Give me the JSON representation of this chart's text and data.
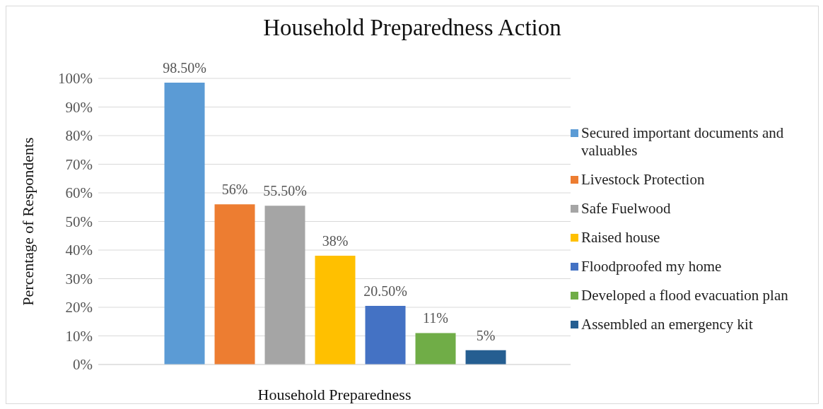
{
  "chart_data": {
    "type": "bar",
    "title": "Household Preparedness Action",
    "xlabel": "Household Preparedness",
    "ylabel": "Percentage of Respondents",
    "categories": [
      null
    ],
    "series": [
      {
        "name": "Secured important documents and valuables",
        "color": "#5b9bd5",
        "values": [
          98.5
        ],
        "value_labels": [
          "98.50%"
        ]
      },
      {
        "name": "Livestock Protection",
        "color": "#ed7d31",
        "values": [
          56
        ],
        "value_labels": [
          "56%"
        ]
      },
      {
        "name": "Safe Fuelwood",
        "color": "#a5a5a5",
        "values": [
          55.5
        ],
        "value_labels": [
          "55.50%"
        ]
      },
      {
        "name": "Raised house",
        "color": "#ffc000",
        "values": [
          38
        ],
        "value_labels": [
          "38%"
        ]
      },
      {
        "name": "Floodproofed my home",
        "color": "#4472c4",
        "values": [
          20.5
        ],
        "value_labels": [
          "20.50%"
        ]
      },
      {
        "name": "Developed a flood evacuation plan",
        "color": "#70ad47",
        "values": [
          11
        ],
        "value_labels": [
          "11%"
        ]
      },
      {
        "name": "Assembled an emergency kit",
        "color": "#255e91",
        "values": [
          5
        ],
        "value_labels": [
          "5%"
        ]
      }
    ],
    "ylim": [
      0,
      100
    ],
    "yticks": [
      {
        "value": 0,
        "label": "0%"
      },
      {
        "value": 10,
        "label": "10%"
      },
      {
        "value": 20,
        "label": "20%"
      },
      {
        "value": 30,
        "label": "30%"
      },
      {
        "value": 40,
        "label": "40%"
      },
      {
        "value": 50,
        "label": "50%"
      },
      {
        "value": 60,
        "label": "60%"
      },
      {
        "value": 70,
        "label": "70%"
      },
      {
        "value": 80,
        "label": "80%"
      },
      {
        "value": 90,
        "label": "90%"
      },
      {
        "value": 100,
        "label": "100%"
      }
    ],
    "grid": "y",
    "legend": "right"
  }
}
